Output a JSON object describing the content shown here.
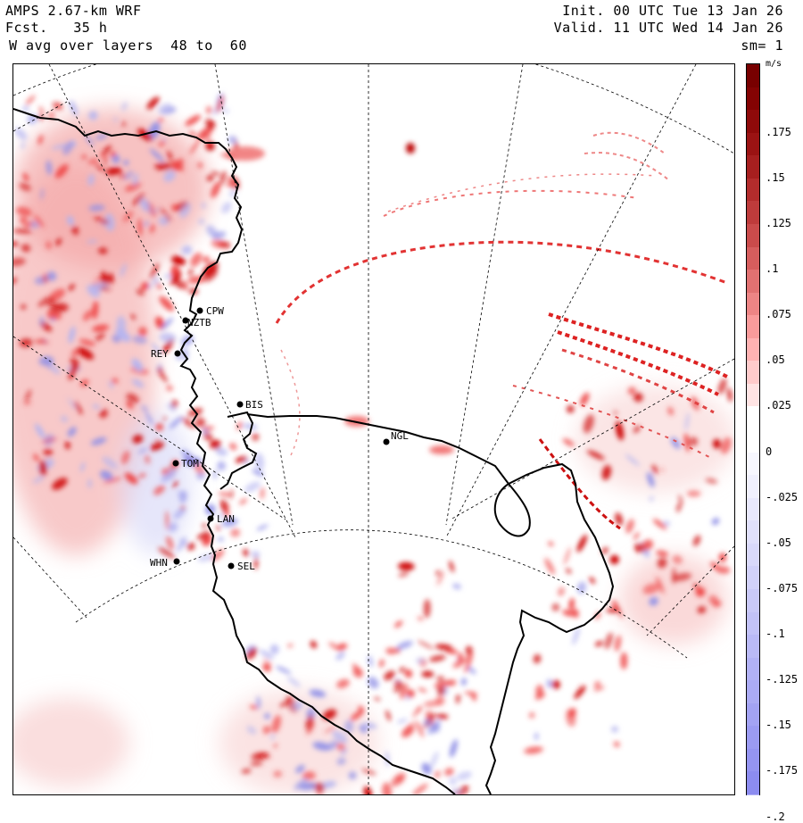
{
  "header": {
    "model": "AMPS 2.67-km WRF",
    "forecast": "Fcst.   35 h",
    "field": "W avg over layers  48 to  60",
    "init": "Init. 00 UTC Tue 13 Jan 26",
    "valid": "Valid. 11 UTC Wed 14 Jan 26",
    "smoothing": "sm= 1"
  },
  "colorbar": {
    "unit": "m/s",
    "ticks": [
      ".175",
      ".15",
      ".125",
      ".1",
      ".075",
      ".05",
      ".025",
      "0",
      "-.025",
      "-.05",
      "-.075",
      "-.1",
      "-.125",
      "-.15",
      "-.175",
      "-.2"
    ],
    "positive_color": "#cc0000",
    "negative_color": "#8888ee",
    "zero_color": "#ffffff"
  },
  "stations": [
    {
      "code": "CPW",
      "id": "cpw"
    },
    {
      "code": "NZTB",
      "id": "nztb"
    },
    {
      "code": "REY",
      "id": "rey"
    },
    {
      "code": "BIS",
      "id": "bis"
    },
    {
      "code": "NGL",
      "id": "ngl"
    },
    {
      "code": "TOM",
      "id": "tom"
    },
    {
      "code": "LAN",
      "id": "lan"
    },
    {
      "code": "WHN",
      "id": "whn"
    },
    {
      "code": "SEL",
      "id": "sel"
    }
  ],
  "colors": {
    "coastline": "#000000",
    "graticule": "#000000",
    "updraft": "#dd1111",
    "updraft_light": "#f5aaaa",
    "downdraft": "#9a9aee"
  }
}
